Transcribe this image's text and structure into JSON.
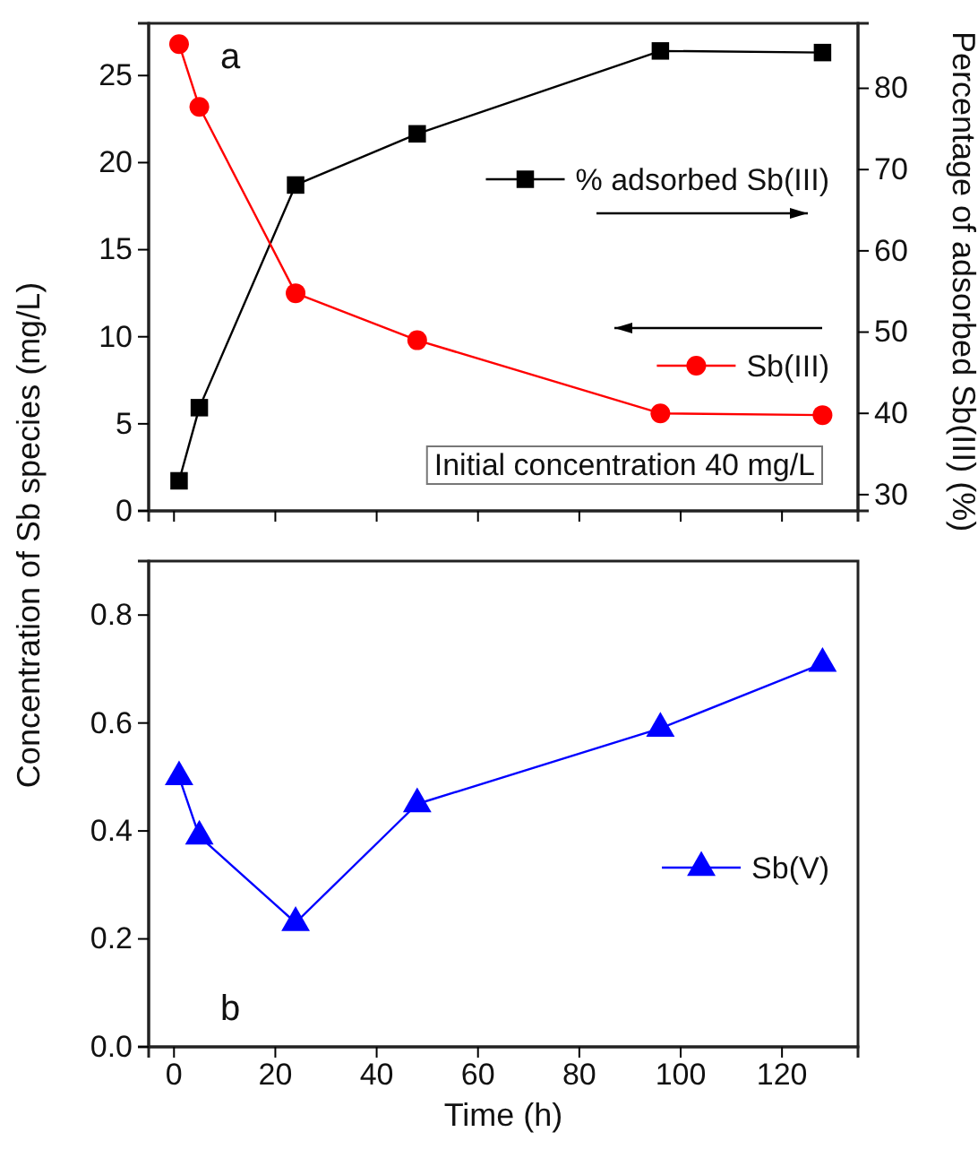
{
  "chart_data": [
    {
      "type": "line",
      "ylabel": "Concentration of Sb species (mg/L)",
      "y2label": "Percentage of adsorbed Sb(III) (%)",
      "annotations": [
        "a",
        "Initial concentration 40 mg/L"
      ],
      "x": [
        1,
        5,
        24,
        48,
        96,
        128
      ],
      "xlim": [
        -5,
        135
      ],
      "xticks": [
        0,
        20,
        40,
        60,
        80,
        100,
        120
      ],
      "ylim": [
        0,
        28
      ],
      "yticks": [
        0,
        5,
        10,
        15,
        20,
        25
      ],
      "y2lim": [
        28,
        88
      ],
      "y2ticks": [
        30,
        40,
        50,
        60,
        70,
        80
      ],
      "tick_labels": "y",
      "legend": "right",
      "series": [
        {
          "name": "% adsorbed Sb(III)",
          "color": "#000000",
          "axis": "y2",
          "marker": "square",
          "values": [
            31.7,
            40.7,
            68.1,
            74.4,
            84.6,
            84.4
          ]
        },
        {
          "name": "Sb(III)",
          "color": "#ff0000",
          "axis": "y",
          "marker": "circle",
          "values": [
            26.8,
            23.2,
            12.5,
            9.8,
            5.6,
            5.5
          ]
        }
      ]
    },
    {
      "type": "line",
      "xlabel": "Time (h)",
      "annotations": [
        "b"
      ],
      "x": [
        1,
        5,
        24,
        48,
        96,
        128
      ],
      "xlim": [
        -5,
        135
      ],
      "xticks": [
        0,
        20,
        40,
        60,
        80,
        100,
        120
      ],
      "ylim": [
        0,
        0.9
      ],
      "yticks": [
        {
          "value": 0,
          "label": "0.0"
        },
        {
          "value": 0.2,
          "label": "0.2"
        },
        {
          "value": 0.4,
          "label": "0.4"
        },
        {
          "value": 0.6,
          "label": "0.6"
        },
        {
          "value": 0.8,
          "label": "0.8"
        }
      ],
      "legend": "right",
      "series": [
        {
          "name": "Sb(V)",
          "color": "#0000ff",
          "axis": "y",
          "marker": "triangle",
          "values": [
            0.5,
            0.39,
            0.23,
            0.45,
            0.59,
            0.71
          ]
        }
      ]
    }
  ]
}
